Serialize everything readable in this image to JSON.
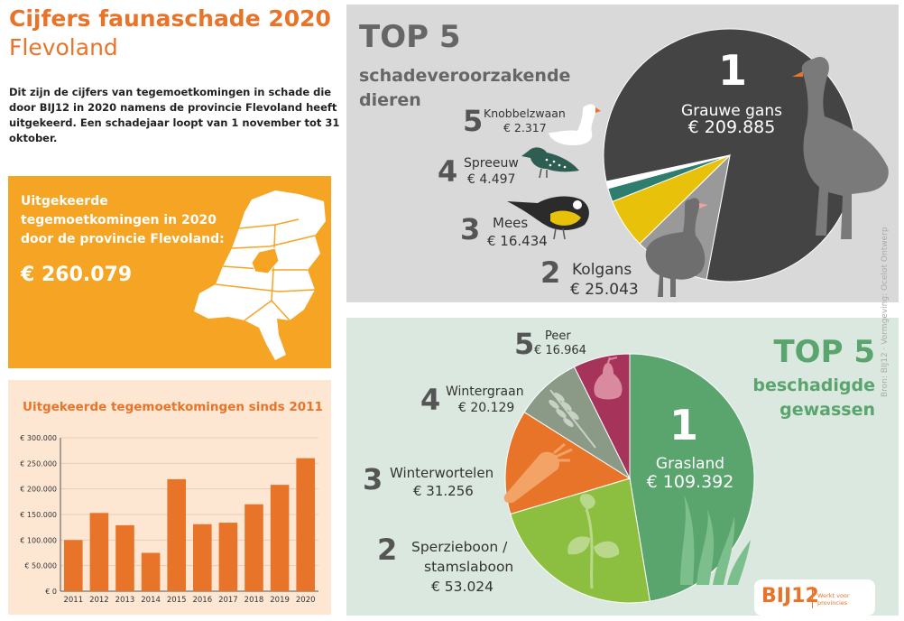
{
  "header": {
    "title": "Cijfers faunaschade 2020",
    "subtitle": "Flevoland",
    "intro": "Dit zijn de cijfers van tegemoetkomingen in schade die door BIJ12 in 2020 namens de provincie Flevoland heeft uitgekeerd. Een schadejaar loopt van 1 november tot 31 oktober."
  },
  "payout_panel": {
    "label": "Uitgekeerde tegemoetkomingen in 2020 door de provincie Flevoland:",
    "amount": "€ 260.079"
  },
  "bar_panel": {
    "title": "Uitgekeerde tegemoetkomingen sinds 2011"
  },
  "birds_panel": {
    "top_label": "TOP 5",
    "subtitle_line1": "schadeveroorzakende",
    "subtitle_line2": "dieren",
    "items": [
      {
        "rank": "1",
        "name": "Grauwe gans",
        "amount": "€ 209.885"
      },
      {
        "rank": "2",
        "name": "Kolgans",
        "amount": "€ 25.043"
      },
      {
        "rank": "3",
        "name": "Mees",
        "amount": "€ 16.434"
      },
      {
        "rank": "4",
        "name": "Spreeuw",
        "amount": "€ 4.497"
      },
      {
        "rank": "5",
        "name": "Knobbelzwaan",
        "amount": "€ 2.317"
      }
    ]
  },
  "crops_panel": {
    "top_label": "TOP 5",
    "subtitle_line1": "beschadigde",
    "subtitle_line2": "gewassen",
    "items": [
      {
        "rank": "1",
        "name": "Grasland",
        "amount": "€ 109.392"
      },
      {
        "rank": "2",
        "name": "Sperzieboon /",
        "name2": "stamslaboon",
        "amount": "€ 53.024"
      },
      {
        "rank": "3",
        "name": "Winterwortelen",
        "amount": "€ 31.256"
      },
      {
        "rank": "4",
        "name": "Wintergraan",
        "amount": "€ 20.129"
      },
      {
        "rank": "5",
        "name": "Peer",
        "amount": "€ 16.964"
      }
    ]
  },
  "footer": {
    "credit": "Bron: BIJ12 · Vormgeving: Ocelot Ontwerp",
    "logo": "BIJ12",
    "logo_tagline": "Werkt voor provincies"
  },
  "colors": {
    "orange": "#e8742a",
    "amber": "#f6a423",
    "bird_pie_dark": "#444444",
    "crop_green": "#5aa46e"
  },
  "chart_data": [
    {
      "type": "bar",
      "title": "Uitgekeerde tegemoetkomingen sinds 2011",
      "categories": [
        "2011",
        "2012",
        "2013",
        "2014",
        "2015",
        "2016",
        "2017",
        "2018",
        "2019",
        "2020"
      ],
      "values": [
        100000,
        153000,
        129000,
        75000,
        219000,
        131000,
        134000,
        170000,
        208000,
        260079
      ],
      "ylim": [
        0,
        300000
      ],
      "yticks": [
        "€ 0",
        "€ 50.000",
        "€ 100.000",
        "€ 150.000",
        "€ 200.000",
        "€ 250.000",
        "€ 300.000"
      ],
      "color": "#e8742a"
    },
    {
      "type": "pie",
      "title": "TOP 5 schadeveroorzakende dieren",
      "labels": [
        "Grauwe gans",
        "Kolgans",
        "Mees",
        "Spreeuw",
        "Knobbelzwaan"
      ],
      "values": [
        209885,
        25043,
        16434,
        4497,
        2317
      ],
      "colors": [
        "#444444",
        "#999999",
        "#e8c20a",
        "#2e7d6e",
        "#ffffff"
      ]
    },
    {
      "type": "pie",
      "title": "TOP 5 beschadigde gewassen",
      "labels": [
        "Grasland",
        "Sperzieboon / stamslaboon",
        "Winterwortelen",
        "Wintergraan",
        "Peer"
      ],
      "values": [
        109392,
        53024,
        31256,
        20129,
        16964
      ],
      "colors": [
        "#5aa46e",
        "#8cbf3f",
        "#e8742a",
        "#8a9a86",
        "#a6335a"
      ]
    }
  ]
}
